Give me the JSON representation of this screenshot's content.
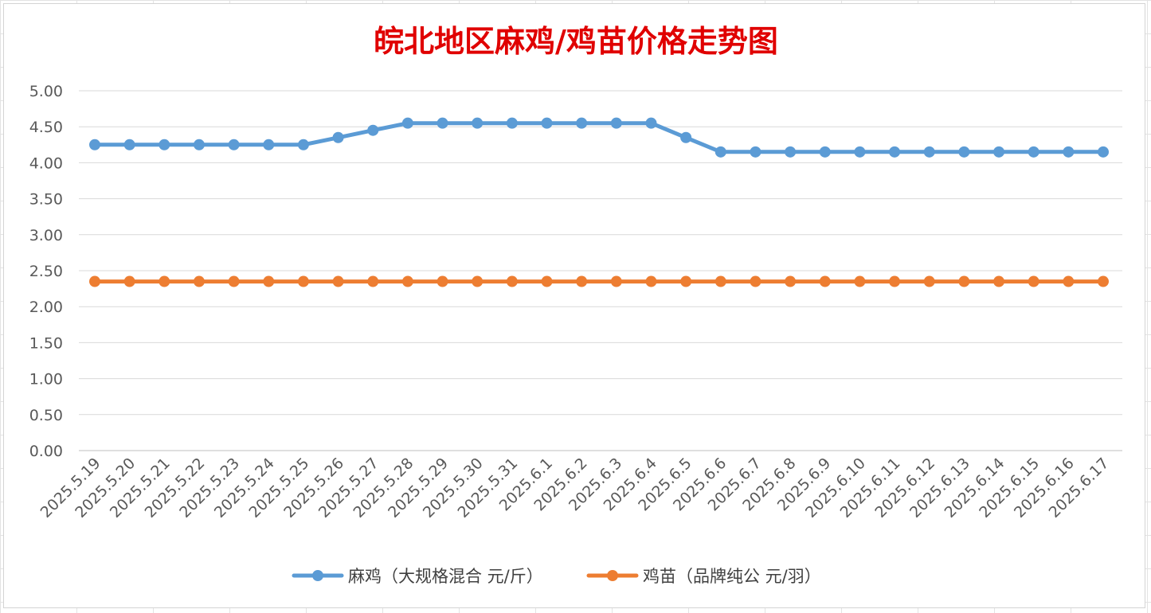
{
  "chart_data": {
    "type": "line",
    "title": "皖北地区麻鸡/鸡苗价格走势图",
    "xlabel": "",
    "ylabel": "",
    "ylim": [
      0,
      5
    ],
    "yticks": [
      "0.00",
      "0.50",
      "1.00",
      "1.50",
      "2.00",
      "2.50",
      "3.00",
      "3.50",
      "4.00",
      "4.50",
      "5.00"
    ],
    "grid": true,
    "legend_position": "bottom",
    "categories": [
      "2025.5.19",
      "2025.5.20",
      "2025.5.21",
      "2025.5.22",
      "2025.5.23",
      "2025.5.24",
      "2025.5.25",
      "2025.5.26",
      "2025.5.27",
      "2025.5.28",
      "2025.5.29",
      "2025.5.30",
      "2025.5.31",
      "2025.6.1",
      "2025.6.2",
      "2025.6.3",
      "2025.6.4",
      "2025.6.5",
      "2025.6.6",
      "2025.6.7",
      "2025.6.8",
      "2025.6.9",
      "2025.6.10",
      "2025.6.11",
      "2025.6.12",
      "2025.6.13",
      "2025.6.14",
      "2025.6.15",
      "2025.6.16",
      "2025.6.17"
    ],
    "series": [
      {
        "name": "麻鸡（大规格混合 元/斤）",
        "color": "#5b9bd5",
        "values": [
          4.25,
          4.25,
          4.25,
          4.25,
          4.25,
          4.25,
          4.25,
          4.35,
          4.45,
          4.55,
          4.55,
          4.55,
          4.55,
          4.55,
          4.55,
          4.55,
          4.55,
          4.35,
          4.15,
          4.15,
          4.15,
          4.15,
          4.15,
          4.15,
          4.15,
          4.15,
          4.15,
          4.15,
          4.15,
          4.15
        ]
      },
      {
        "name": "鸡苗（品牌纯公 元/羽）",
        "color": "#ed7d31",
        "values": [
          2.35,
          2.35,
          2.35,
          2.35,
          2.35,
          2.35,
          2.35,
          2.35,
          2.35,
          2.35,
          2.35,
          2.35,
          2.35,
          2.35,
          2.35,
          2.35,
          2.35,
          2.35,
          2.35,
          2.35,
          2.35,
          2.35,
          2.35,
          2.35,
          2.35,
          2.35,
          2.35,
          2.35,
          2.35,
          2.35
        ]
      }
    ]
  }
}
